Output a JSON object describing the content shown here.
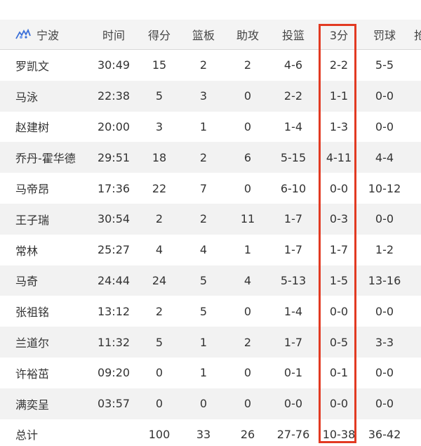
{
  "header": {
    "team": "宁波",
    "team_logo_icon": "ningbo-team-logo-icon",
    "columns": [
      "时间",
      "得分",
      "篮板",
      "助攻",
      "投篮",
      "3分",
      "罚球",
      "抢"
    ]
  },
  "players": [
    [
      "罗凯文",
      "30:49",
      "15",
      "2",
      "2",
      "4-6",
      "2-2",
      "5-5"
    ],
    [
      "马泳",
      "22:38",
      "5",
      "3",
      "0",
      "2-2",
      "1-1",
      "0-0"
    ],
    [
      "赵建树",
      "20:00",
      "3",
      "1",
      "0",
      "1-4",
      "1-3",
      "0-0"
    ],
    [
      "乔丹-霍华德",
      "29:51",
      "18",
      "2",
      "6",
      "5-15",
      "4-11",
      "4-4"
    ],
    [
      "马帝昂",
      "17:36",
      "22",
      "7",
      "0",
      "6-10",
      "0-0",
      "10-12"
    ],
    [
      "王子瑞",
      "30:54",
      "2",
      "2",
      "11",
      "1-7",
      "0-3",
      "0-0"
    ],
    [
      "常林",
      "25:27",
      "4",
      "4",
      "1",
      "1-7",
      "1-7",
      "1-2"
    ],
    [
      "马奇",
      "24:44",
      "24",
      "5",
      "4",
      "5-13",
      "1-5",
      "13-16"
    ],
    [
      "张祖铭",
      "13:12",
      "2",
      "5",
      "0",
      "1-4",
      "0-0",
      "0-0"
    ],
    [
      "兰道尔",
      "11:32",
      "5",
      "1",
      "2",
      "1-7",
      "0-5",
      "3-3"
    ],
    [
      "许裕茁",
      "09:20",
      "0",
      "1",
      "0",
      "0-1",
      "0-1",
      "0-0"
    ],
    [
      "满奕呈",
      "03:57",
      "0",
      "0",
      "0",
      "0-0",
      "0-0",
      "0-0"
    ]
  ],
  "totals": [
    "总计",
    "",
    "100",
    "33",
    "26",
    "27-76",
    "10-38",
    "36-42"
  ],
  "highlight_color": "#e23a22"
}
